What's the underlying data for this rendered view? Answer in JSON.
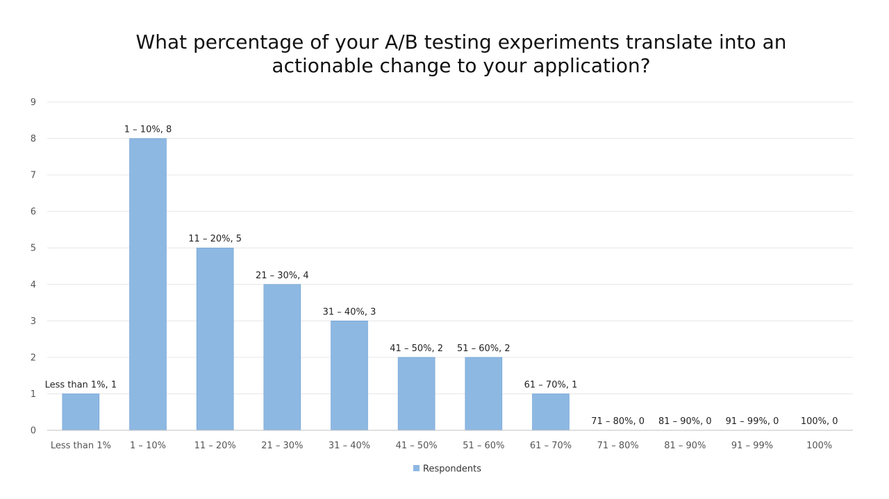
{
  "chart_data": {
    "type": "bar",
    "title_lines": [
      "What percentage of your A/B testing experiments translate into an",
      "actionable change to your application?"
    ],
    "categories": [
      "Less than 1%",
      "1 – 10%",
      "11 – 20%",
      "21 – 30%",
      "31 – 40%",
      "41 – 50%",
      "51 – 60%",
      "61 – 70%",
      "71 – 80%",
      "81 – 90%",
      "91 – 99%",
      "100%"
    ],
    "series": [
      {
        "name": "Respondents",
        "values": [
          1,
          8,
          5,
          4,
          3,
          2,
          2,
          1,
          0,
          0,
          0,
          0
        ],
        "color": "#8DB8E2"
      }
    ],
    "data_labels": [
      "Less than 1%, 1",
      "1 – 10%, 8",
      "11 – 20%, 5",
      "21 – 30%, 4",
      "31 – 40%, 3",
      "41 – 50%, 2",
      "51 – 60%, 2",
      "61 – 70%, 1",
      "71 – 80%, 0",
      "81 – 90%, 0",
      "91 – 99%, 0",
      "100%, 0"
    ],
    "ylim": [
      0,
      9
    ],
    "yticks": [
      0,
      1,
      2,
      3,
      4,
      5,
      6,
      7,
      8,
      9
    ],
    "grid": true,
    "legend_position": "bottom"
  }
}
